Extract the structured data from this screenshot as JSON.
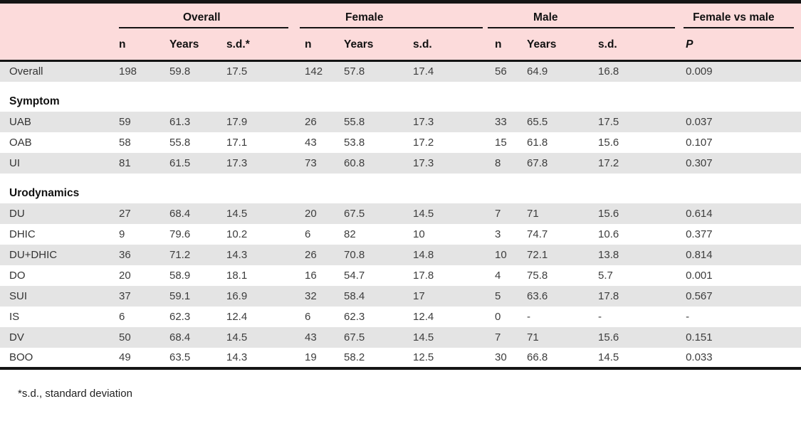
{
  "table": {
    "column_groups": [
      {
        "label": "Overall",
        "columns": [
          "n",
          "Years",
          "s.d.*"
        ]
      },
      {
        "label": "Female",
        "columns": [
          "n",
          "Years",
          "s.d."
        ]
      },
      {
        "label": "Male",
        "columns": [
          "n",
          "Years",
          "s.d."
        ]
      },
      {
        "label": "Female vs male",
        "columns": [
          "P"
        ]
      }
    ],
    "rows": [
      {
        "type": "data",
        "label": "Overall",
        "values": [
          "198",
          "59.8",
          "17.5",
          "142",
          "57.8",
          "17.4",
          "56",
          "64.9",
          "16.8",
          "0.009"
        ]
      },
      {
        "type": "section",
        "label": "Symptom"
      },
      {
        "type": "data",
        "label": "UAB",
        "values": [
          "59",
          "61.3",
          "17.9",
          "26",
          "55.8",
          "17.3",
          "33",
          "65.5",
          "17.5",
          "0.037"
        ]
      },
      {
        "type": "data",
        "label": "OAB",
        "values": [
          "58",
          "55.8",
          "17.1",
          "43",
          "53.8",
          "17.2",
          "15",
          "61.8",
          "15.6",
          "0.107"
        ]
      },
      {
        "type": "data",
        "label": "UI",
        "values": [
          "81",
          "61.5",
          "17.3",
          "73",
          "60.8",
          "17.3",
          "8",
          "67.8",
          "17.2",
          "0.307"
        ]
      },
      {
        "type": "section",
        "label": "Urodynamics"
      },
      {
        "type": "data",
        "label": "DU",
        "values": [
          "27",
          "68.4",
          "14.5",
          "20",
          "67.5",
          "14.5",
          "7",
          "71",
          "15.6",
          "0.614"
        ]
      },
      {
        "type": "data",
        "label": "DHIC",
        "values": [
          "9",
          "79.6",
          "10.2",
          "6",
          "82",
          "10",
          "3",
          "74.7",
          "10.6",
          "0.377"
        ]
      },
      {
        "type": "data",
        "label": "DU+DHIC",
        "values": [
          "36",
          "71.2",
          "14.3",
          "26",
          "70.8",
          "14.8",
          "10",
          "72.1",
          "13.8",
          "0.814"
        ]
      },
      {
        "type": "data",
        "label": "DO",
        "values": [
          "20",
          "58.9",
          "18.1",
          "16",
          "54.7",
          "17.8",
          "4",
          "75.8",
          "5.7",
          "0.001"
        ]
      },
      {
        "type": "data",
        "label": "SUI",
        "values": [
          "37",
          "59.1",
          "16.9",
          "32",
          "58.4",
          "17",
          "5",
          "63.6",
          "17.8",
          "0.567"
        ]
      },
      {
        "type": "data",
        "label": "IS",
        "values": [
          "6",
          "62.3",
          "12.4",
          "6",
          "62.3",
          "12.4",
          "0",
          "-",
          "-",
          "-"
        ]
      },
      {
        "type": "data",
        "label": "DV",
        "values": [
          "50",
          "68.4",
          "14.5",
          "43",
          "67.5",
          "14.5",
          "7",
          "71",
          "15.6",
          "0.151"
        ]
      },
      {
        "type": "data",
        "label": "BOO",
        "values": [
          "49",
          "63.5",
          "14.3",
          "19",
          "58.2",
          "12.5",
          "30",
          "66.8",
          "14.5",
          "0.033"
        ]
      }
    ]
  },
  "footnote": "*s.d., standard deviation",
  "colors": {
    "header_bg": "#fcdbdb",
    "row_shade": "#e4e4e4",
    "rule": "#141414"
  }
}
